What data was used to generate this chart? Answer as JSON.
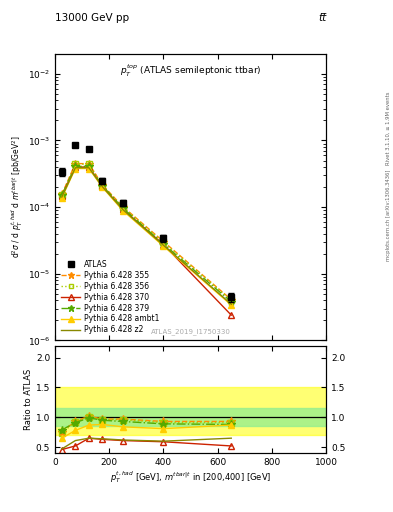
{
  "title_left": "13000 GeV pp",
  "title_right": "tt̅",
  "annotation": "$p_T^{top}$ (ATLAS semileptonic ttbar)",
  "watermark": "ATLAS_2019_I1750330",
  "right_label_top": "Rivet 3.1.10, ≥ 1.9M events",
  "right_label_bot": "mcplots.cern.ch [arXiv:1306.3436]",
  "ylabel_main": "d$^2\\sigma$ / d $p_T^{t,had}$ d $m^{tbar|t}$ [pb/GeV$^2$]",
  "ylabel_ratio": "Ratio to ATLAS",
  "xlabel": "$p_T^{t,had}$ [GeV], $m^{tbar|t}$ in [200,400] [GeV]",
  "ylim_main": [
    1e-06,
    0.02
  ],
  "ylim_ratio": [
    0.4,
    2.2
  ],
  "xlim": [
    0,
    1000
  ],
  "atlas_x": [
    25,
    75,
    125,
    175,
    250,
    400,
    650
  ],
  "atlas_y": [
    0.00034,
    0.00085,
    0.00075,
    0.00025,
    0.000115,
    3.4e-05,
    4.5e-06
  ],
  "atlas_yerr_lo": [
    5e-05,
    5e-05,
    4e-05,
    2.5e-05,
    1.2e-05,
    4e-06,
    7e-07
  ],
  "atlas_yerr_hi": [
    5e-05,
    5e-05,
    4e-05,
    2.5e-05,
    1.2e-05,
    4e-06,
    7e-07
  ],
  "series": [
    {
      "label": "Pythia 6.428 355",
      "color": "#ff8c00",
      "linestyle": "--",
      "marker": "*",
      "markersize": 6,
      "x": [
        25,
        75,
        125,
        175,
        250,
        400,
        650
      ],
      "y": [
        0.000155,
        0.00045,
        0.00045,
        0.000215,
        0.000102,
        3.05e-05,
        4.1e-06
      ],
      "ratio": [
        0.76,
        0.93,
        1.02,
        0.97,
        0.97,
        0.93,
        0.93
      ]
    },
    {
      "label": "Pythia 6.428 356",
      "color": "#aacc00",
      "linestyle": ":",
      "marker": "s",
      "markersize": 4,
      "markerfacecolor": "none",
      "x": [
        25,
        75,
        125,
        175,
        250,
        400,
        650
      ],
      "y": [
        0.000152,
        0.00044,
        0.00044,
        0.00021,
        0.0001,
        2.95e-05,
        4e-06
      ],
      "ratio": [
        0.74,
        0.92,
        1.01,
        0.96,
        0.96,
        0.91,
        0.91
      ]
    },
    {
      "label": "Pythia 6.428 370",
      "color": "#cc2200",
      "linestyle": "-",
      "marker": "^",
      "markersize": 5,
      "markerfacecolor": "none",
      "x": [
        25,
        75,
        125,
        175,
        250,
        400,
        650
      ],
      "y": [
        0.000148,
        0.0004,
        0.0004,
        0.000205,
        9.3e-05,
        2.75e-05,
        2.4e-06
      ],
      "ratio": [
        0.46,
        0.52,
        0.65,
        0.63,
        0.61,
        0.59,
        0.52
      ]
    },
    {
      "label": "Pythia 6.428 379",
      "color": "#55aa00",
      "linestyle": "-.",
      "marker": "*",
      "markersize": 6,
      "x": [
        25,
        75,
        125,
        175,
        250,
        400,
        650
      ],
      "y": [
        0.00015,
        0.00041,
        0.00041,
        0.000208,
        9.7e-05,
        2.8e-05,
        3.8e-06
      ],
      "ratio": [
        0.79,
        0.91,
        0.99,
        0.95,
        0.93,
        0.89,
        0.88
      ]
    },
    {
      "label": "Pythia 6.428 ambt1",
      "color": "#ffcc00",
      "linestyle": "-",
      "marker": "^",
      "markersize": 5,
      "x": [
        25,
        75,
        125,
        175,
        250,
        400,
        650
      ],
      "y": [
        0.000138,
        0.00038,
        0.00038,
        0.000198,
        8.9e-05,
        2.6e-05,
        3.4e-06
      ],
      "ratio": [
        0.65,
        0.78,
        0.87,
        0.88,
        0.84,
        0.81,
        0.87
      ]
    },
    {
      "label": "Pythia 6.428 z2",
      "color": "#888800",
      "linestyle": "-",
      "marker": "None",
      "markersize": 4,
      "x": [
        25,
        75,
        125,
        175,
        250,
        400,
        650
      ],
      "y": [
        0.000142,
        0.00039,
        0.00039,
        0.000202,
        9.2e-05,
        2.68e-05,
        3.5e-06
      ],
      "ratio": [
        0.47,
        0.61,
        0.65,
        0.64,
        0.62,
        0.6,
        0.65
      ]
    }
  ],
  "green_band_lo": 0.85,
  "green_band_hi": 1.15,
  "yellow_band_lo": 0.7,
  "yellow_band_hi": 1.5
}
